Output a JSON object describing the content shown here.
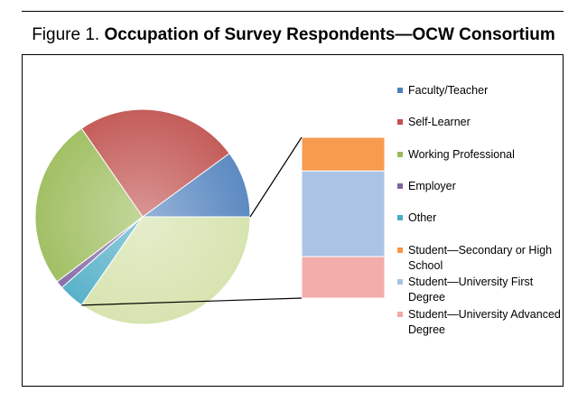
{
  "figure": {
    "number": "Figure 1.",
    "title": "Occupation of Survey Respondents—OCW Consortium"
  },
  "chart_data": {
    "type": "pie",
    "subtype": "bar-of-pie",
    "title": "Occupation of Survey Respondents—OCW Consortium",
    "legend_position": "right",
    "series": [
      {
        "name": "Faculty/Teacher",
        "value": 9,
        "color": "#4f81bd"
      },
      {
        "name": "Self-Learner",
        "value": 22,
        "color": "#c0504d"
      },
      {
        "name": "Working Professional",
        "value": 23,
        "color": "#9bbb59"
      },
      {
        "name": "Employer",
        "value": 1,
        "color": "#8064a2"
      },
      {
        "name": "Other",
        "value": 3.5,
        "color": "#4bacc6"
      },
      {
        "name": "Student—Secondary or High School",
        "value": 6.5,
        "color": "#f79646",
        "in_bar": true
      },
      {
        "name": "Student—University First Degree",
        "value": 16.5,
        "color": "#a7c1e4",
        "in_bar": true
      },
      {
        "name": "Student—University Advanced Degree",
        "value": 8,
        "color": "#f3a9a7",
        "in_bar": true
      }
    ],
    "bar_order_top_to_bottom": [
      "Student—Secondary or High School",
      "Student—University First Degree",
      "Student—University Advanced Degree"
    ],
    "pie_start_angle_deg": 0,
    "direction": "counterclockwise"
  }
}
